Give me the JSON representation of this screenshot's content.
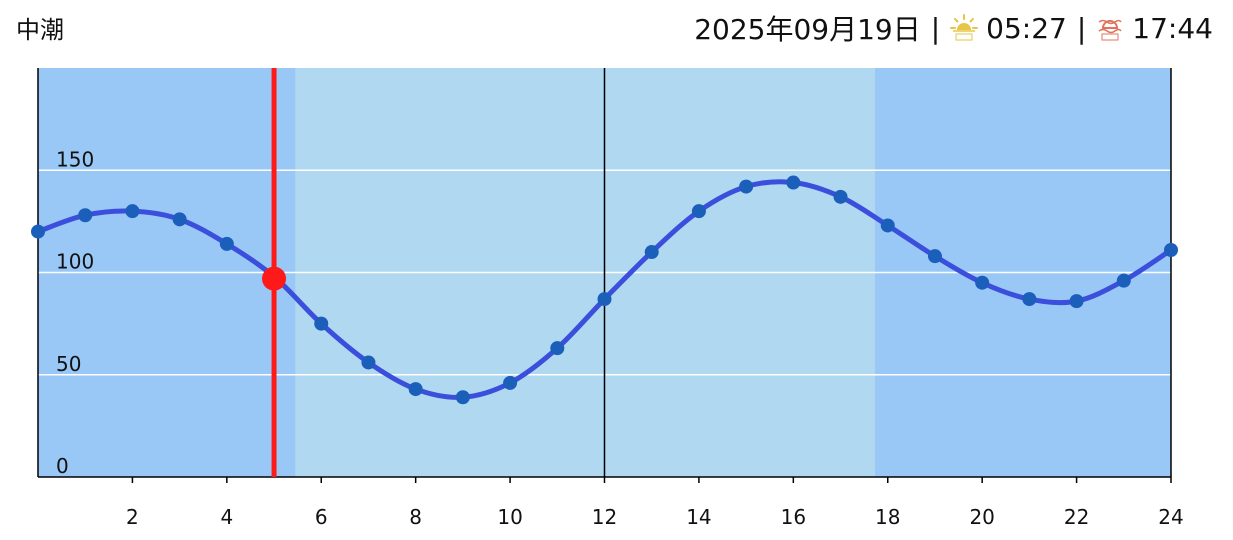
{
  "header": {
    "tide_name": "中潮",
    "date": "2025年09月19日",
    "sunrise_icon": "sunrise-icon",
    "sunrise_time": "05:27",
    "sunset_icon": "sunset-icon",
    "sunset_time": "17:44",
    "separator": "|"
  },
  "colors": {
    "night_band": "#99c8f7",
    "day_band": "#b1d8f1",
    "tide_line": "#3b4fdc",
    "point": "#1b5fbb",
    "current_marker": "#ff1a1a",
    "grid": "#ffffff",
    "sunrise_icon": "#e8c547",
    "sunset_icon": "#e0745c"
  },
  "chart_data": {
    "type": "line",
    "x": [
      0,
      1,
      2,
      3,
      4,
      5,
      6,
      7,
      8,
      9,
      10,
      11,
      12,
      13,
      14,
      15,
      16,
      17,
      18,
      19,
      20,
      21,
      22,
      23,
      24
    ],
    "series": [
      {
        "values": [
          120,
          128,
          130,
          126,
          114,
          98,
          75,
          56,
          43,
          39,
          46,
          63,
          87,
          110,
          130,
          142,
          144,
          137,
          123,
          108,
          95,
          87,
          86,
          96,
          111
        ]
      }
    ],
    "xlim": [
      0,
      24
    ],
    "ylim": [
      0,
      200
    ],
    "x_ticks": [
      2,
      4,
      6,
      8,
      10,
      12,
      14,
      16,
      18,
      20,
      22,
      24
    ],
    "y_ticks": [
      0,
      50,
      100,
      150
    ],
    "grid": true,
    "daytime_band": [
      5.45,
      17.73
    ],
    "noon_line": 12,
    "current": {
      "x": 5,
      "y": 97
    }
  }
}
